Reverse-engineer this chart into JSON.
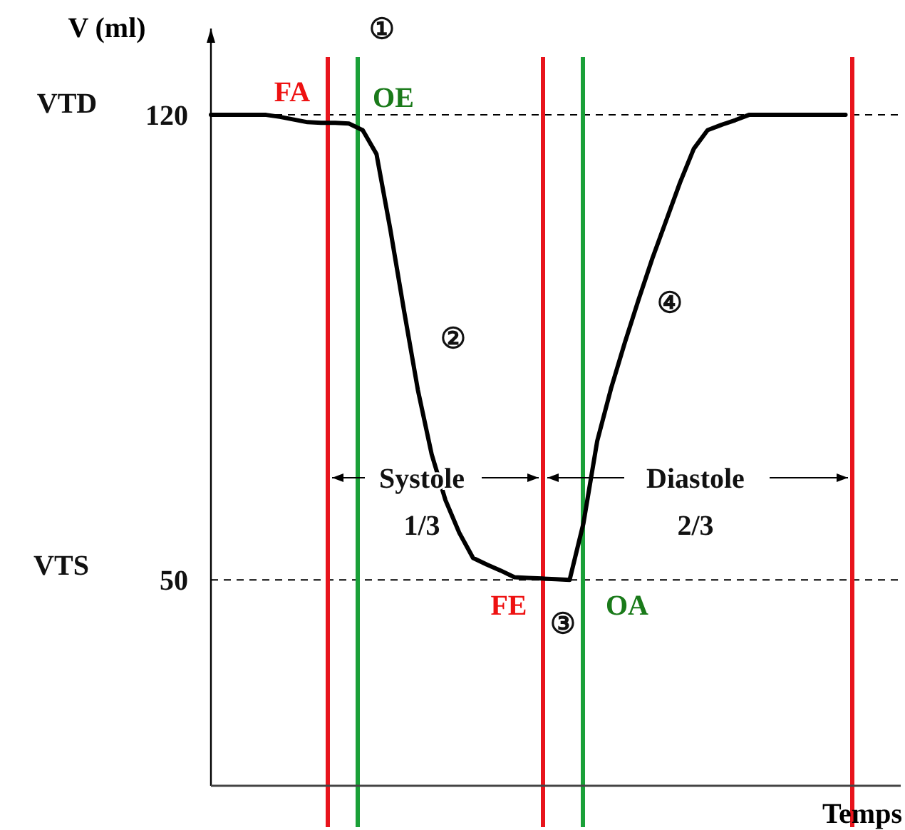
{
  "chart_data": {
    "type": "line",
    "xlabel": "Temps",
    "ylabel": "V (ml)",
    "categories": [
      null,
      null,
      null,
      null,
      null,
      null,
      null,
      null,
      null,
      null,
      null,
      null,
      null,
      null,
      null,
      null,
      null,
      null,
      null,
      null,
      null,
      null,
      null,
      null,
      null,
      null,
      null,
      null,
      null,
      null,
      null,
      null,
      null,
      null,
      null,
      null,
      null,
      null,
      null,
      null,
      null,
      null,
      null,
      null,
      null,
      null,
      null
    ],
    "series": [
      {
        "color": "#000000",
        "values": [
          120,
          120,
          120,
          120,
          120,
          119.7,
          119.3,
          118.9,
          118.8,
          118.8,
          118.7,
          117.7,
          114.1,
          102.8,
          90.5,
          78.6,
          68.9,
          62,
          57.1,
          53.3,
          52.3,
          51.4,
          50.4,
          50.3,
          50.2,
          50.1,
          50,
          58.5,
          70.9,
          78.8,
          85.7,
          92.2,
          98.4,
          104.1,
          109.8,
          114.9,
          117.7,
          118.5,
          119.2,
          120,
          120,
          120,
          120,
          120,
          120,
          120,
          120
        ]
      }
    ],
    "ylim": [
      19,
      133
    ],
    "yticks": [
      120,
      50
    ],
    "tick_labels": "y",
    "grid": false,
    "legend": false,
    "marker": "none",
    "line_style": "solid",
    "ref_lines": [
      {
        "axis": "y",
        "value": 120,
        "label": null,
        "color": "#000000",
        "line_style": "dashed"
      },
      {
        "axis": "y",
        "value": 50,
        "label": null,
        "color": "#000000",
        "line_style": "dashed"
      }
    ],
    "annotations": [
      "①",
      "②",
      "③",
      "④",
      "Systole",
      "1/3",
      "Diastole",
      "2/3",
      "FA",
      "OE",
      "FE",
      "OA",
      "VTD",
      "VTS"
    ]
  }
}
